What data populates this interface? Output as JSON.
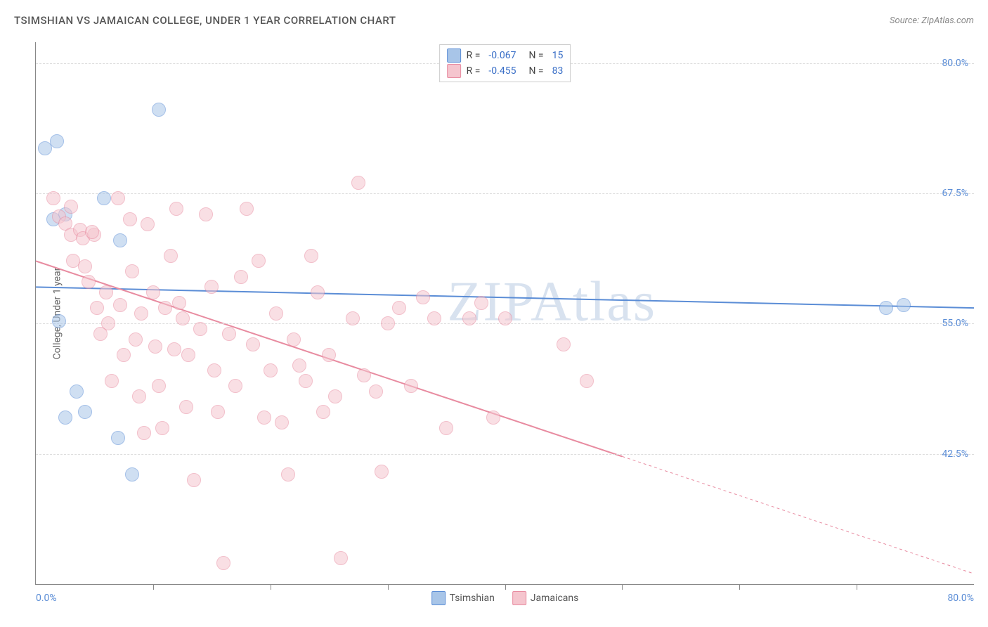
{
  "title": "TSIMSHIAN VS JAMAICAN COLLEGE, UNDER 1 YEAR CORRELATION CHART",
  "source": "Source: ZipAtlas.com",
  "watermark": "ZIPAtlas",
  "chart": {
    "type": "scatter",
    "background_color": "#ffffff",
    "grid_color": "#dddddd",
    "axis_color": "#888888",
    "y_axis_title": "College, Under 1 year",
    "xlim": [
      0,
      80
    ],
    "ylim": [
      30,
      82
    ],
    "x_min_label": "0.0%",
    "x_max_label": "80.0%",
    "yticks": [
      {
        "v": 42.5,
        "label": "42.5%"
      },
      {
        "v": 55.0,
        "label": "55.0%"
      },
      {
        "v": 67.5,
        "label": "67.5%"
      },
      {
        "v": 80.0,
        "label": "80.0%"
      }
    ],
    "xticks": [
      10,
      20,
      30,
      40,
      50,
      60,
      70
    ],
    "marker_size": 18,
    "label_fontsize": 14,
    "title_fontsize": 15,
    "tick_color": "#5b8dd6"
  },
  "series": [
    {
      "name": "Tsimshian",
      "color_fill": "#a8c5e8",
      "color_stroke": "#5b8dd6",
      "class": "blue",
      "R": "-0.067",
      "N": "15",
      "trend": {
        "x1": 0,
        "y1": 58.5,
        "x2": 80,
        "y2": 56.5,
        "solid_to_x": 80,
        "width": 2
      },
      "points": [
        {
          "x": 1.8,
          "y": 72.5
        },
        {
          "x": 0.8,
          "y": 71.8
        },
        {
          "x": 10.5,
          "y": 75.5
        },
        {
          "x": 2.5,
          "y": 65.5
        },
        {
          "x": 5.8,
          "y": 67.0
        },
        {
          "x": 7.2,
          "y": 63.0
        },
        {
          "x": 2.0,
          "y": 55.2
        },
        {
          "x": 3.5,
          "y": 48.5
        },
        {
          "x": 2.5,
          "y": 46.0
        },
        {
          "x": 4.2,
          "y": 46.5
        },
        {
          "x": 7.0,
          "y": 44.0
        },
        {
          "x": 8.2,
          "y": 40.5
        },
        {
          "x": 72.5,
          "y": 56.5
        },
        {
          "x": 74.0,
          "y": 56.8
        },
        {
          "x": 1.5,
          "y": 65.0
        }
      ]
    },
    {
      "name": "Jamaicans",
      "color_fill": "#f5c5ce",
      "color_stroke": "#e88ba0",
      "class": "pink",
      "R": "-0.455",
      "N": "83",
      "trend": {
        "x1": 0,
        "y1": 61.0,
        "x2": 80,
        "y2": 31.0,
        "solid_to_x": 50,
        "width": 2
      },
      "points": [
        {
          "x": 1.5,
          "y": 67.0
        },
        {
          "x": 2.0,
          "y": 65.3
        },
        {
          "x": 2.5,
          "y": 64.6
        },
        {
          "x": 3.0,
          "y": 66.2
        },
        {
          "x": 3.0,
          "y": 63.5
        },
        {
          "x": 3.2,
          "y": 61.0
        },
        {
          "x": 3.8,
          "y": 64.0
        },
        {
          "x": 4.0,
          "y": 63.2
        },
        {
          "x": 4.2,
          "y": 60.5
        },
        {
          "x": 4.5,
          "y": 59.0
        },
        {
          "x": 5.0,
          "y": 63.5
        },
        {
          "x": 5.2,
          "y": 56.5
        },
        {
          "x": 5.5,
          "y": 54.0
        },
        {
          "x": 6.0,
          "y": 58.0
        },
        {
          "x": 6.2,
          "y": 55.0
        },
        {
          "x": 6.5,
          "y": 49.5
        },
        {
          "x": 7.0,
          "y": 67.0
        },
        {
          "x": 7.2,
          "y": 56.8
        },
        {
          "x": 7.5,
          "y": 52.0
        },
        {
          "x": 8.0,
          "y": 65.0
        },
        {
          "x": 8.2,
          "y": 60.0
        },
        {
          "x": 8.5,
          "y": 53.5
        },
        {
          "x": 8.8,
          "y": 48.0
        },
        {
          "x": 9.0,
          "y": 56.0
        },
        {
          "x": 9.2,
          "y": 44.5
        },
        {
          "x": 9.5,
          "y": 64.5
        },
        {
          "x": 10.0,
          "y": 58.0
        },
        {
          "x": 10.2,
          "y": 52.8
        },
        {
          "x": 10.5,
          "y": 49.0
        },
        {
          "x": 10.8,
          "y": 45.0
        },
        {
          "x": 11.0,
          "y": 56.5
        },
        {
          "x": 11.5,
          "y": 61.5
        },
        {
          "x": 12.0,
          "y": 66.0
        },
        {
          "x": 12.2,
          "y": 57.0
        },
        {
          "x": 12.5,
          "y": 55.5
        },
        {
          "x": 12.8,
          "y": 47.0
        },
        {
          "x": 13.0,
          "y": 52.0
        },
        {
          "x": 13.5,
          "y": 40.0
        },
        {
          "x": 14.0,
          "y": 54.5
        },
        {
          "x": 14.5,
          "y": 65.5
        },
        {
          "x": 15.0,
          "y": 58.5
        },
        {
          "x": 15.2,
          "y": 50.5
        },
        {
          "x": 15.5,
          "y": 46.5
        },
        {
          "x": 16.0,
          "y": 32.0
        },
        {
          "x": 16.5,
          "y": 54.0
        },
        {
          "x": 17.0,
          "y": 49.0
        },
        {
          "x": 17.5,
          "y": 59.5
        },
        {
          "x": 18.0,
          "y": 66.0
        },
        {
          "x": 18.5,
          "y": 53.0
        },
        {
          "x": 19.0,
          "y": 61.0
        },
        {
          "x": 19.5,
          "y": 46.0
        },
        {
          "x": 20.0,
          "y": 50.5
        },
        {
          "x": 20.5,
          "y": 56.0
        },
        {
          "x": 21.0,
          "y": 45.5
        },
        {
          "x": 21.5,
          "y": 40.5
        },
        {
          "x": 22.0,
          "y": 53.5
        },
        {
          "x": 22.5,
          "y": 51.0
        },
        {
          "x": 23.0,
          "y": 49.5
        },
        {
          "x": 23.5,
          "y": 61.5
        },
        {
          "x": 24.0,
          "y": 58.0
        },
        {
          "x": 24.5,
          "y": 46.5
        },
        {
          "x": 25.0,
          "y": 52.0
        },
        {
          "x": 25.5,
          "y": 48.0
        },
        {
          "x": 26.0,
          "y": 32.5
        },
        {
          "x": 27.0,
          "y": 55.5
        },
        {
          "x": 27.5,
          "y": 68.5
        },
        {
          "x": 28.0,
          "y": 50.0
        },
        {
          "x": 29.0,
          "y": 48.5
        },
        {
          "x": 29.5,
          "y": 40.8
        },
        {
          "x": 30.0,
          "y": 55.0
        },
        {
          "x": 31.0,
          "y": 56.5
        },
        {
          "x": 32.0,
          "y": 49.0
        },
        {
          "x": 33.0,
          "y": 57.5
        },
        {
          "x": 34.0,
          "y": 55.5
        },
        {
          "x": 35.0,
          "y": 45.0
        },
        {
          "x": 37.0,
          "y": 55.5
        },
        {
          "x": 38.0,
          "y": 57.0
        },
        {
          "x": 39.0,
          "y": 46.0
        },
        {
          "x": 40.0,
          "y": 55.5
        },
        {
          "x": 45.0,
          "y": 53.0
        },
        {
          "x": 47.0,
          "y": 49.5
        },
        {
          "x": 4.8,
          "y": 63.8
        },
        {
          "x": 11.8,
          "y": 52.5
        }
      ]
    }
  ],
  "legend_bottom": [
    {
      "label": "Tsimshian",
      "class": "blue"
    },
    {
      "label": "Jamaicans",
      "class": "pink"
    }
  ]
}
